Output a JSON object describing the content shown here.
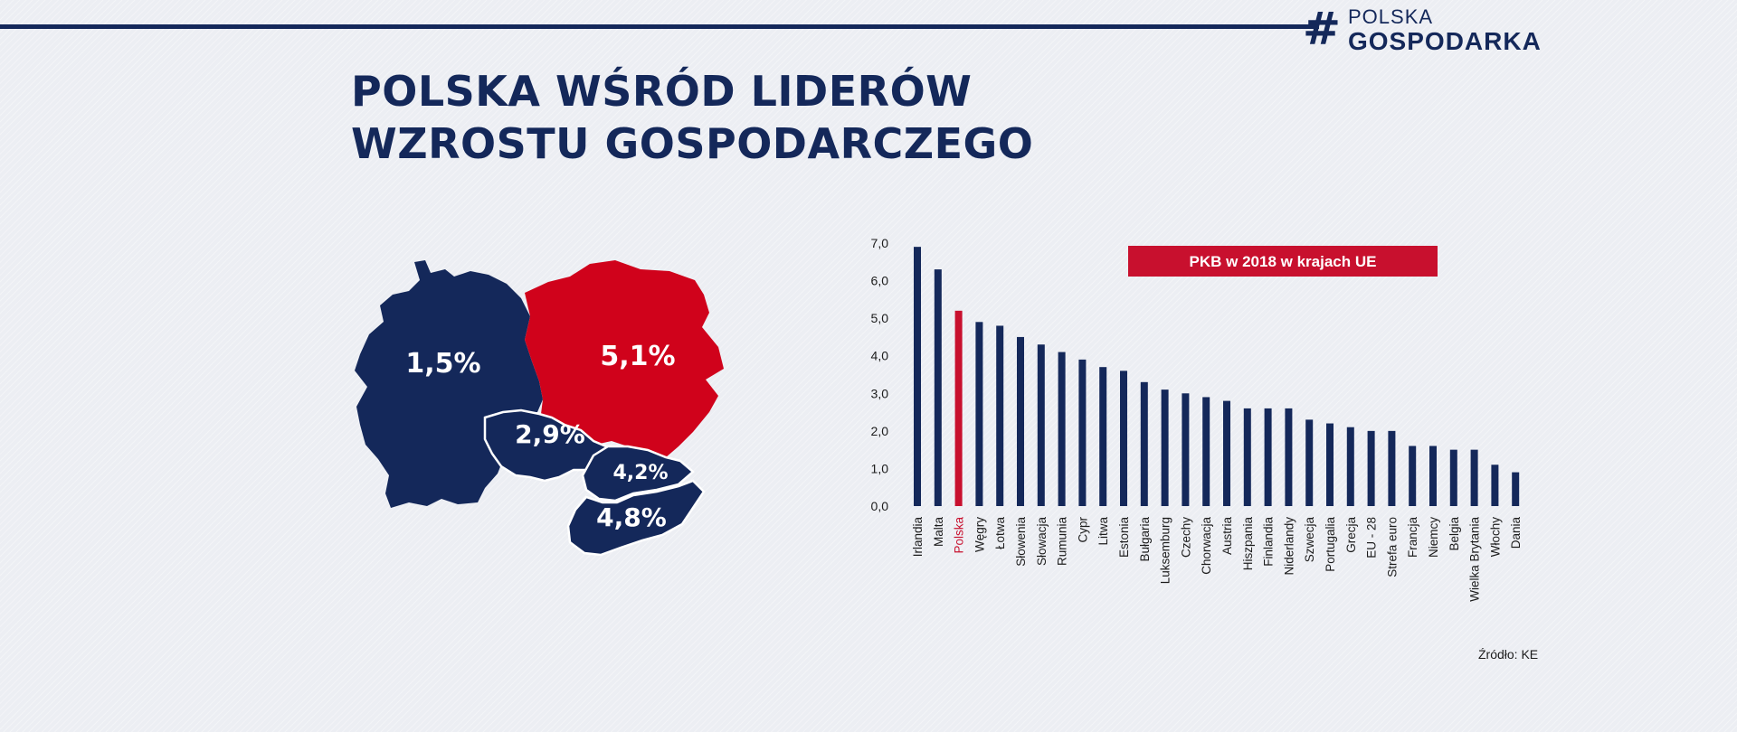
{
  "header": {
    "logo_top": "POLSKA",
    "logo_bottom": "GOSPODARKA",
    "title_line1": "POLSKA WŚRÓD LIDERÓW",
    "title_line2": "WZROSTU GOSPODARCZEGO"
  },
  "map": {
    "germany": "1,5%",
    "poland": "5,1%",
    "czechia": "2,9%",
    "slovakia": "4,2%",
    "hungary": "4,8%"
  },
  "colors": {
    "navy": "#14285a",
    "red": "#d0021b",
    "bar": "#14285a",
    "highlight": "#c8102e"
  },
  "chart_data": {
    "type": "bar",
    "title": "PKB w 2018 w krajach UE",
    "categories": [
      "Irlandia",
      "Malta",
      "Polska",
      "Węgry",
      "Łotwa",
      "Słowenia",
      "Słowacja",
      "Rumunia",
      "Cypr",
      "Litwa",
      "Estonia",
      "Bułgaria",
      "Luksemburg",
      "Czechy",
      "Chorwacja",
      "Austria",
      "Hiszpania",
      "Finlandia",
      "Niderlandy",
      "Szwecja",
      "Portugalia",
      "Grecja",
      "EU - 28",
      "Strefa euro",
      "Francja",
      "Niemcy",
      "Belgia",
      "Wielka Brytania",
      "Włochy",
      "Dania"
    ],
    "values": [
      6.9,
      6.3,
      5.2,
      4.9,
      4.8,
      4.5,
      4.3,
      4.1,
      3.9,
      3.7,
      3.6,
      3.3,
      3.1,
      3.0,
      2.9,
      2.8,
      2.6,
      2.6,
      2.6,
      2.3,
      2.2,
      2.1,
      2.0,
      2.0,
      1.6,
      1.6,
      1.5,
      1.5,
      1.1,
      0.9
    ],
    "highlight": "Polska",
    "ylim": [
      0,
      7
    ],
    "yticks": [
      "0,0",
      "1,0",
      "2,0",
      "3,0",
      "4,0",
      "5,0",
      "6,0",
      "7,0"
    ],
    "grid": false,
    "legend": "none"
  },
  "source": "Źródło: KE"
}
